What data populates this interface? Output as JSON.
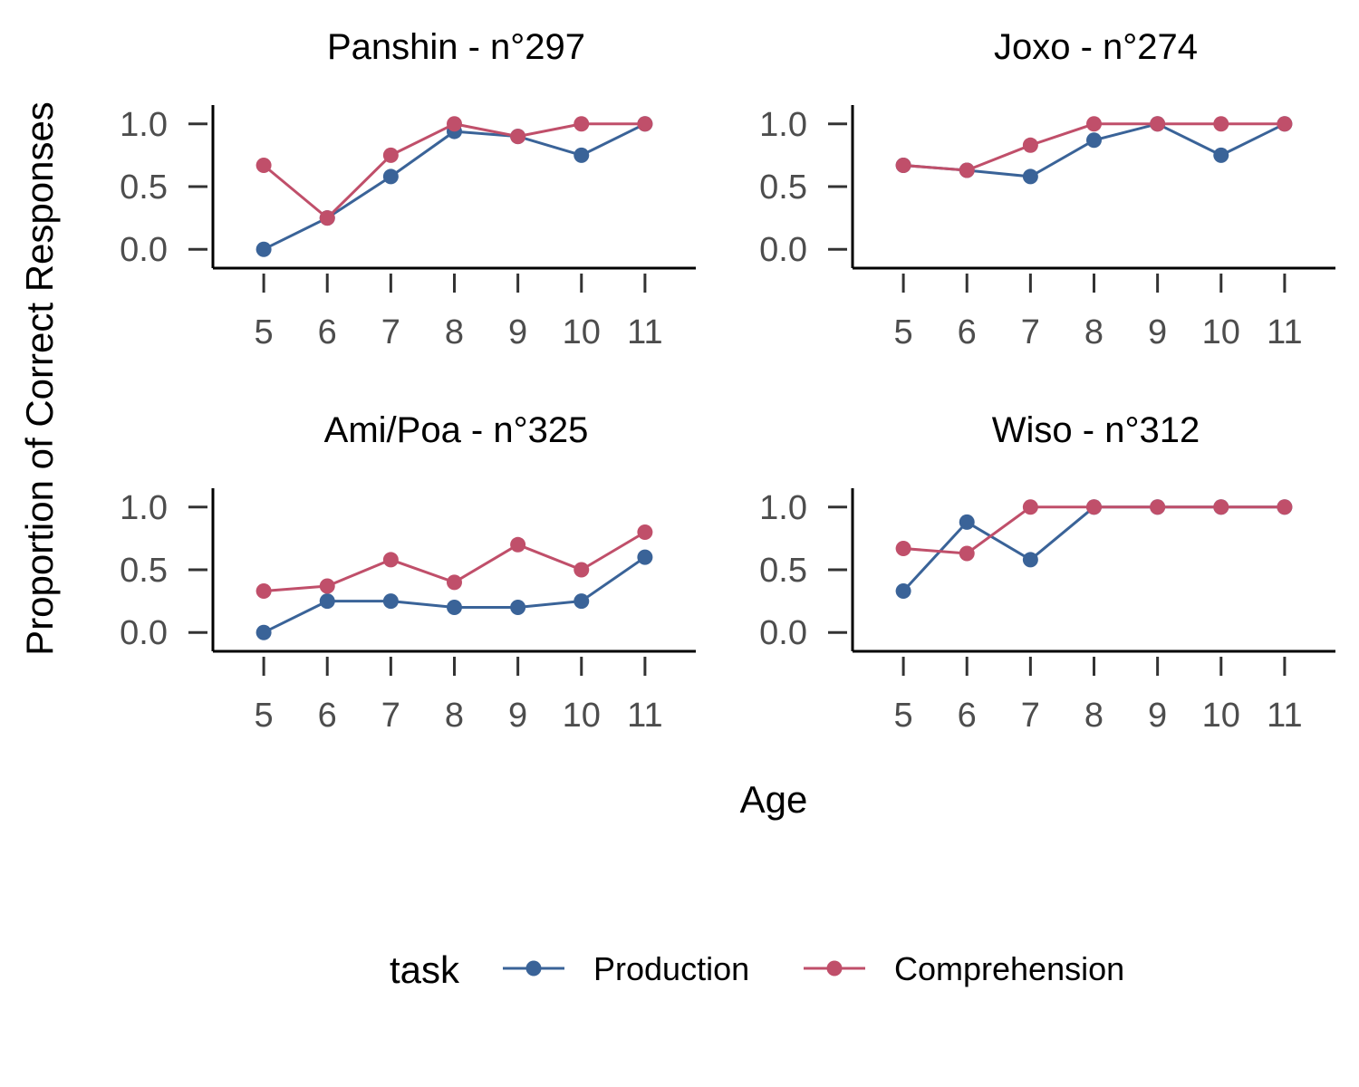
{
  "chart_data": {
    "type": "line",
    "xlabel": "Age",
    "ylabel": "Proportion of Correct Responses",
    "x": [
      5,
      6,
      7,
      8,
      9,
      10,
      11
    ],
    "x_ticks": [
      "5",
      "6",
      "7",
      "8",
      "9",
      "10",
      "11"
    ],
    "y_ticks": [
      "0.0",
      "0.5",
      "1.0"
    ],
    "ylim": [
      -0.15,
      1.15
    ],
    "xlim": [
      4.2,
      11.8
    ],
    "grid": false,
    "legend": {
      "title": "task",
      "placement": "bottom",
      "entries": [
        {
          "label": "Production",
          "color": "#3a6398"
        },
        {
          "label": "Comprehension",
          "color": "#c04f6a"
        }
      ]
    },
    "panels": [
      {
        "title": "Panshin - n°297",
        "series": [
          {
            "name": "Production",
            "values": [
              0.0,
              0.25,
              0.58,
              0.94,
              0.9,
              0.75,
              1.0
            ]
          },
          {
            "name": "Comprehension",
            "values": [
              0.67,
              0.25,
              0.75,
              1.0,
              0.9,
              1.0,
              1.0
            ]
          }
        ]
      },
      {
        "title": "Joxo - n°274",
        "series": [
          {
            "name": "Production",
            "values": [
              0.67,
              0.63,
              0.58,
              0.87,
              1.0,
              0.75,
              1.0
            ]
          },
          {
            "name": "Comprehension",
            "values": [
              0.67,
              0.63,
              0.83,
              1.0,
              1.0,
              1.0,
              1.0
            ]
          }
        ]
      },
      {
        "title": "Ami/Poa - n°325",
        "series": [
          {
            "name": "Production",
            "values": [
              0.0,
              0.25,
              0.25,
              0.2,
              0.2,
              0.25,
              0.6
            ]
          },
          {
            "name": "Comprehension",
            "values": [
              0.33,
              0.37,
              0.58,
              0.4,
              0.7,
              0.5,
              0.8
            ]
          }
        ]
      },
      {
        "title": "Wiso - n°312",
        "series": [
          {
            "name": "Production",
            "values": [
              0.33,
              0.88,
              0.58,
              1.0,
              1.0,
              1.0,
              1.0
            ]
          },
          {
            "name": "Comprehension",
            "values": [
              0.67,
              0.63,
              1.0,
              1.0,
              1.0,
              1.0,
              1.0
            ]
          }
        ]
      }
    ]
  }
}
